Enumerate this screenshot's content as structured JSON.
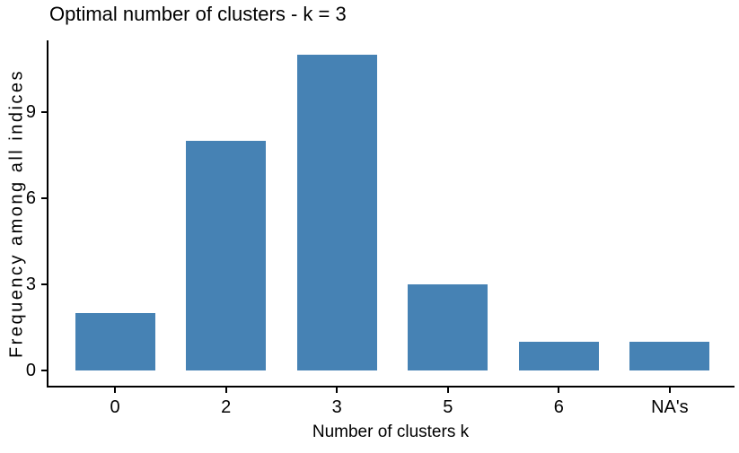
{
  "chart_data": {
    "type": "bar",
    "title": "Optimal number of clusters - k = 3",
    "xlabel": "Number of clusters k",
    "ylabel": "Frequency among all indices",
    "categories": [
      "0",
      "2",
      "3",
      "5",
      "6",
      "NA's"
    ],
    "values": [
      2,
      8,
      11,
      3,
      1,
      1
    ],
    "yticks": [
      0,
      3,
      6,
      9
    ],
    "ylim": [
      0,
      11.55
    ],
    "bar_color": "#4682B4",
    "axis_color": "#000000",
    "background_color": "#FFFFFF",
    "grid": false,
    "legend_position": "none"
  }
}
